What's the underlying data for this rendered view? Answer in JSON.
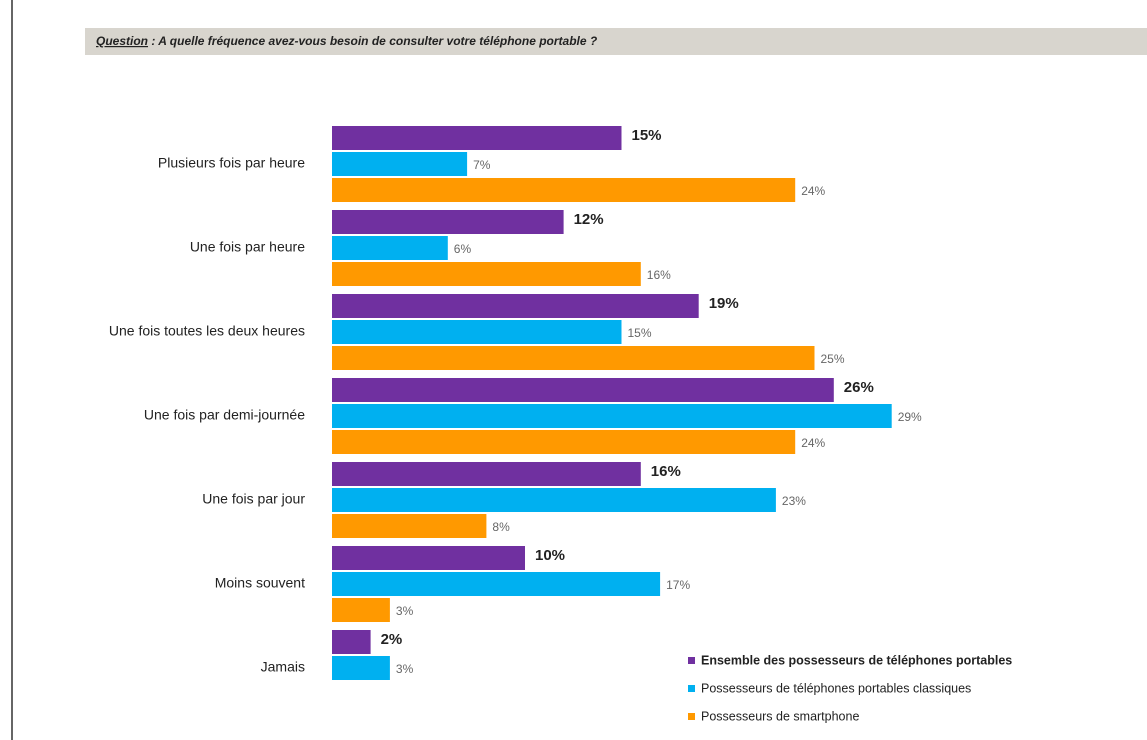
{
  "chart_data": {
    "type": "bar",
    "orientation": "horizontal",
    "title_prefix": "Question",
    "title": " : A quelle fréquence avez-vous besoin de consulter votre téléphone portable ?",
    "categories": [
      "Plusieurs fois par heure",
      "Une fois par heure",
      "Une fois toutes les deux heures",
      "Une fois par demi-journée",
      "Une fois par jour",
      "Moins souvent",
      "Jamais"
    ],
    "series": [
      {
        "name": "Ensemble des possesseurs de téléphones portables",
        "color": "#7030a0",
        "values": [
          15,
          12,
          19,
          26,
          16,
          10,
          2
        ],
        "value_labels": [
          "15%",
          "12%",
          "19%",
          "26%",
          "16%",
          "10%",
          "2%"
        ]
      },
      {
        "name": "Possesseurs de téléphones portables classiques",
        "color": "#00b0f0",
        "values": [
          7,
          6,
          15,
          29,
          23,
          17,
          3
        ],
        "value_labels": [
          "7%",
          "6%",
          "15%",
          "29%",
          "23%",
          "17%",
          "3%"
        ]
      },
      {
        "name": "Possesseurs de smartphone",
        "color": "#ff9900",
        "values": [
          24,
          16,
          25,
          24,
          8,
          3,
          null
        ],
        "value_labels": [
          "24%",
          "16%",
          "25%",
          "24%",
          "8%",
          "3%",
          null
        ]
      }
    ],
    "legend": "bottom-right"
  }
}
